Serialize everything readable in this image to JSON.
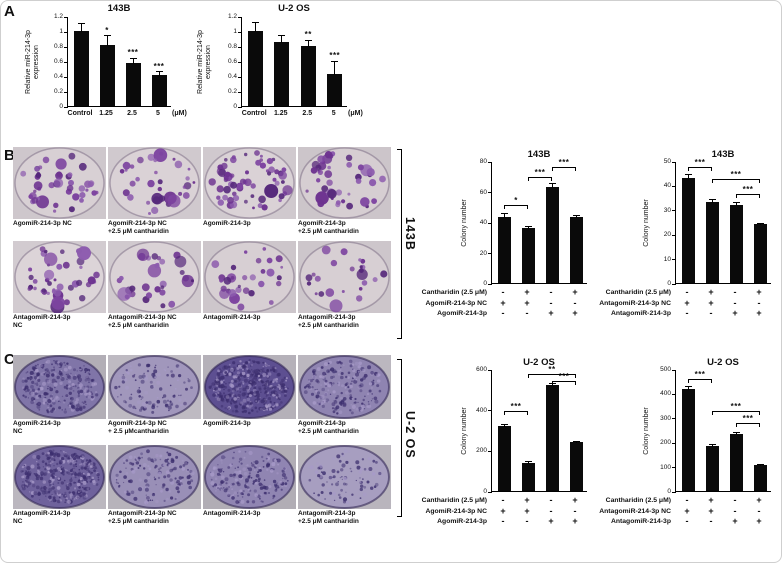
{
  "colors": {
    "bar": "#0a0a0a",
    "colony_palette": [
      "#6d3390",
      "#7d44a0",
      "#55277a",
      "#8d5cae"
    ],
    "dense_stain_light": "#cfc9da",
    "dense_stain_dark": "#584a8e"
  },
  "figure": {
    "panels": [
      {
        "letter": "A"
      },
      {
        "letter": "B",
        "side_label": "143B"
      },
      {
        "letter": "C",
        "side_label": "U-2 OS"
      }
    ]
  },
  "dishes": {
    "B": {
      "row1": [
        {
          "label_lines": [
            "AgomiR-214-3p NC"
          ],
          "colonies": 43
        },
        {
          "label_lines": [
            "AgomiR-214-3p NC",
            "+2.5 μM cantharidin"
          ],
          "colonies": 36
        },
        {
          "label_lines": [
            "AgomiR-214-3p"
          ],
          "colonies": 63
        },
        {
          "label_lines": [
            "AgomiR-214-3p",
            "+2.5 μM cantharidin"
          ],
          "colonies": 43
        }
      ],
      "row2": [
        {
          "label_lines": [
            "AntagomiR-214-3p",
            "NC"
          ],
          "colonies": 43
        },
        {
          "label_lines": [
            "AntagomiR-214-3p NC",
            "+2.5 μM cantharidin"
          ],
          "colonies": 33
        },
        {
          "label_lines": [
            "AntagomiR-214-3p"
          ],
          "colonies": 32
        },
        {
          "label_lines": [
            "AntagomiR-214-3p",
            "+2.5 μM cantharidin"
          ],
          "colonies": 24
        }
      ]
    },
    "C": {
      "row1": [
        {
          "label_lines": [
            "AgomiR-214-3p",
            "NC"
          ],
          "colonies": 320
        },
        {
          "label_lines": [
            "AgomiR-214-3p NC",
            "+ 2.5 μMcantharidin"
          ],
          "colonies": 140
        },
        {
          "label_lines": [
            "AgomiR-214-3p"
          ],
          "colonies": 520
        },
        {
          "label_lines": [
            "AgomiR-214-3p",
            "+2.5 μM cantharidin"
          ],
          "colonies": 240
        }
      ],
      "row2": [
        {
          "label_lines": [
            "AntagomiR-214-3p",
            "NC"
          ],
          "colonies": 420
        },
        {
          "label_lines": [
            "AntagomiR-214-3p NC",
            "+2.5 μM cantharidin"
          ],
          "colonies": 185
        },
        {
          "label_lines": [
            "AntagomiR-214-3p"
          ],
          "colonies": 235
        },
        {
          "label_lines": [
            "AntagomiR-214-3p",
            "+2.5 μM cantharidin"
          ],
          "colonies": 105
        }
      ]
    }
  },
  "chart_data": [
    {
      "id": "chart-a1",
      "type": "bar",
      "title": "143B",
      "ylabel_lines": [
        "Relative miR-214-3p",
        "expression"
      ],
      "categories": [
        "Control",
        "1.25",
        "2.5",
        "5"
      ],
      "x_unit": "(μM)",
      "values": [
        1.0,
        0.82,
        0.58,
        0.42
      ],
      "errors": [
        0.12,
        0.13,
        0.07,
        0.05
      ],
      "sig": [
        "",
        "*",
        "***",
        "***"
      ],
      "ylim": [
        0,
        1.2
      ],
      "yticks": [
        0,
        0.2,
        0.4,
        0.6,
        0.8,
        1.0,
        1.2
      ],
      "ytick_labels": [
        "0",
        "0.2",
        "0.4",
        "0.6",
        "0.8",
        "1",
        "1.2"
      ]
    },
    {
      "id": "chart-a2",
      "type": "bar",
      "title": "U-2 OS",
      "ylabel_lines": [
        "Relative miR-214-3p",
        "expression"
      ],
      "categories": [
        "Control",
        "1.25",
        "2.5",
        "5"
      ],
      "x_unit": "(μM)",
      "values": [
        1.0,
        0.85,
        0.8,
        0.43
      ],
      "errors": [
        0.13,
        0.1,
        0.09,
        0.18
      ],
      "sig": [
        "",
        "",
        "**",
        "***"
      ],
      "ylim": [
        0,
        1.2
      ],
      "yticks": [
        0,
        0.2,
        0.4,
        0.6,
        0.8,
        1.0,
        1.2
      ],
      "ytick_labels": [
        "0",
        "0.2",
        "0.4",
        "0.6",
        "0.8",
        "1",
        "1.2"
      ]
    },
    {
      "id": "chart-b1",
      "type": "bar",
      "title": "143B",
      "ylabel_lines": [
        "Colony number"
      ],
      "values": [
        43,
        36,
        63,
        43
      ],
      "errors": [
        3,
        2,
        3,
        2
      ],
      "ylim": [
        0,
        80
      ],
      "yticks": [
        0,
        20,
        40,
        60,
        80
      ],
      "ytick_labels": [
        "0",
        "20",
        "40",
        "60",
        "80"
      ],
      "conditions": [
        {
          "label": "Cantharidin (2.5 μM)",
          "signs": [
            "-",
            "+",
            "-",
            "+"
          ]
        },
        {
          "label": "AgomiR-214-3p NC",
          "signs": [
            "+",
            "+",
            "-",
            "-"
          ]
        },
        {
          "label": "AgomiR-214-3p",
          "signs": [
            "-",
            "-",
            "+",
            "+"
          ]
        }
      ],
      "brackets": [
        {
          "from": 0,
          "to": 1,
          "label": "*",
          "y": 52
        },
        {
          "from": 1,
          "to": 2,
          "label": "***",
          "y": 70
        },
        {
          "from": 2,
          "to": 3,
          "label": "***",
          "y": 77
        }
      ]
    },
    {
      "id": "chart-b2",
      "type": "bar",
      "title": "143B",
      "ylabel_lines": [
        "Colony number"
      ],
      "values": [
        43,
        33,
        32,
        24
      ],
      "errors": [
        2,
        1.5,
        1.5,
        1
      ],
      "ylim": [
        0,
        50
      ],
      "yticks": [
        0,
        10,
        20,
        30,
        40,
        50
      ],
      "ytick_labels": [
        "0",
        "10",
        "20",
        "30",
        "40",
        "50"
      ],
      "conditions": [
        {
          "label": "Cantharidin (2.5 μM)",
          "signs": [
            "-",
            "+",
            "-",
            "+"
          ]
        },
        {
          "label": "AntagomiR-214-3p NC",
          "signs": [
            "+",
            "+",
            "-",
            "-"
          ]
        },
        {
          "label": "AntagomiR-214-3p",
          "signs": [
            "-",
            "-",
            "+",
            "+"
          ]
        }
      ],
      "brackets": [
        {
          "from": 0,
          "to": 1,
          "label": "***",
          "y": 48
        },
        {
          "from": 1,
          "to": 3,
          "label": "***",
          "y": 43
        },
        {
          "from": 2,
          "to": 3,
          "label": "***",
          "y": 37
        }
      ]
    },
    {
      "id": "chart-c1",
      "type": "bar",
      "title": "U-2 OS",
      "ylabel_lines": [
        "Colony number"
      ],
      "values": [
        320,
        140,
        520,
        240
      ],
      "errors": [
        12,
        8,
        14,
        10
      ],
      "ylim": [
        0,
        600
      ],
      "yticks": [
        0,
        200,
        400,
        600
      ],
      "ytick_labels": [
        "0",
        "200",
        "400",
        "600"
      ],
      "conditions": [
        {
          "label": "Cantharidin (2.5 μM)",
          "signs": [
            "-",
            "+",
            "-",
            "+"
          ]
        },
        {
          "label": "AgomiR-214-3p NC",
          "signs": [
            "+",
            "+",
            "-",
            "-"
          ]
        },
        {
          "label": "AgomiR-214-3p",
          "signs": [
            "-",
            "-",
            "+",
            "+"
          ]
        }
      ],
      "brackets": [
        {
          "from": 0,
          "to": 1,
          "label": "***",
          "y": 400
        },
        {
          "from": 2,
          "to": 3,
          "label": "***",
          "y": 548
        },
        {
          "from": 1,
          "to": 3,
          "label": "**",
          "y": 580
        }
      ]
    },
    {
      "id": "chart-c2",
      "type": "bar",
      "title": "U-2 OS",
      "ylabel_lines": [
        "Colony number"
      ],
      "values": [
        420,
        185,
        235,
        105
      ],
      "errors": [
        12,
        8,
        10,
        8
      ],
      "ylim": [
        0,
        500
      ],
      "yticks": [
        0,
        100,
        200,
        300,
        400,
        500
      ],
      "ytick_labels": [
        "0",
        "100",
        "200",
        "300",
        "400",
        "500"
      ],
      "conditions": [
        {
          "label": "Cantharidin (2.5 μM)",
          "signs": [
            "-",
            "+",
            "-",
            "+"
          ]
        },
        {
          "label": "AntagomiR-214-3p NC",
          "signs": [
            "+",
            "+",
            "-",
            "-"
          ]
        },
        {
          "label": "AntagomiR-214-3p",
          "signs": [
            "-",
            "-",
            "+",
            "+"
          ]
        }
      ],
      "brackets": [
        {
          "from": 0,
          "to": 1,
          "label": "***",
          "y": 465
        },
        {
          "from": 1,
          "to": 3,
          "label": "***",
          "y": 330
        },
        {
          "from": 2,
          "to": 3,
          "label": "***",
          "y": 283
        }
      ]
    }
  ]
}
